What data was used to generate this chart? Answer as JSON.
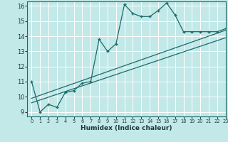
{
  "xlabel": "Humidex (Indice chaleur)",
  "xlim": [
    -0.5,
    23
  ],
  "ylim": [
    8.7,
    16.3
  ],
  "yticks": [
    9,
    10,
    11,
    12,
    13,
    14,
    15,
    16
  ],
  "xticks": [
    0,
    1,
    2,
    3,
    4,
    5,
    6,
    7,
    8,
    9,
    10,
    11,
    12,
    13,
    14,
    15,
    16,
    17,
    18,
    19,
    20,
    21,
    22,
    23
  ],
  "background_color": "#c2e8e8",
  "line_color": "#1a6b6b",
  "grid_color": "#ffffff",
  "main_x": [
    0,
    1,
    2,
    3,
    4,
    5,
    6,
    7,
    8,
    9,
    10,
    11,
    12,
    13,
    14,
    15,
    16,
    17,
    18,
    19,
    20,
    21,
    22,
    23
  ],
  "main_y": [
    11.0,
    9.0,
    9.5,
    9.3,
    10.3,
    10.4,
    10.9,
    11.0,
    13.8,
    13.0,
    13.5,
    16.1,
    15.5,
    15.3,
    15.3,
    15.7,
    16.2,
    15.4,
    14.3,
    14.3,
    14.3,
    14.3,
    14.3,
    14.5
  ],
  "reg_line1_x": [
    0,
    23
  ],
  "reg_line1_y": [
    9.6,
    13.9
  ],
  "reg_line2_x": [
    0,
    23
  ],
  "reg_line2_y": [
    9.9,
    14.4
  ]
}
